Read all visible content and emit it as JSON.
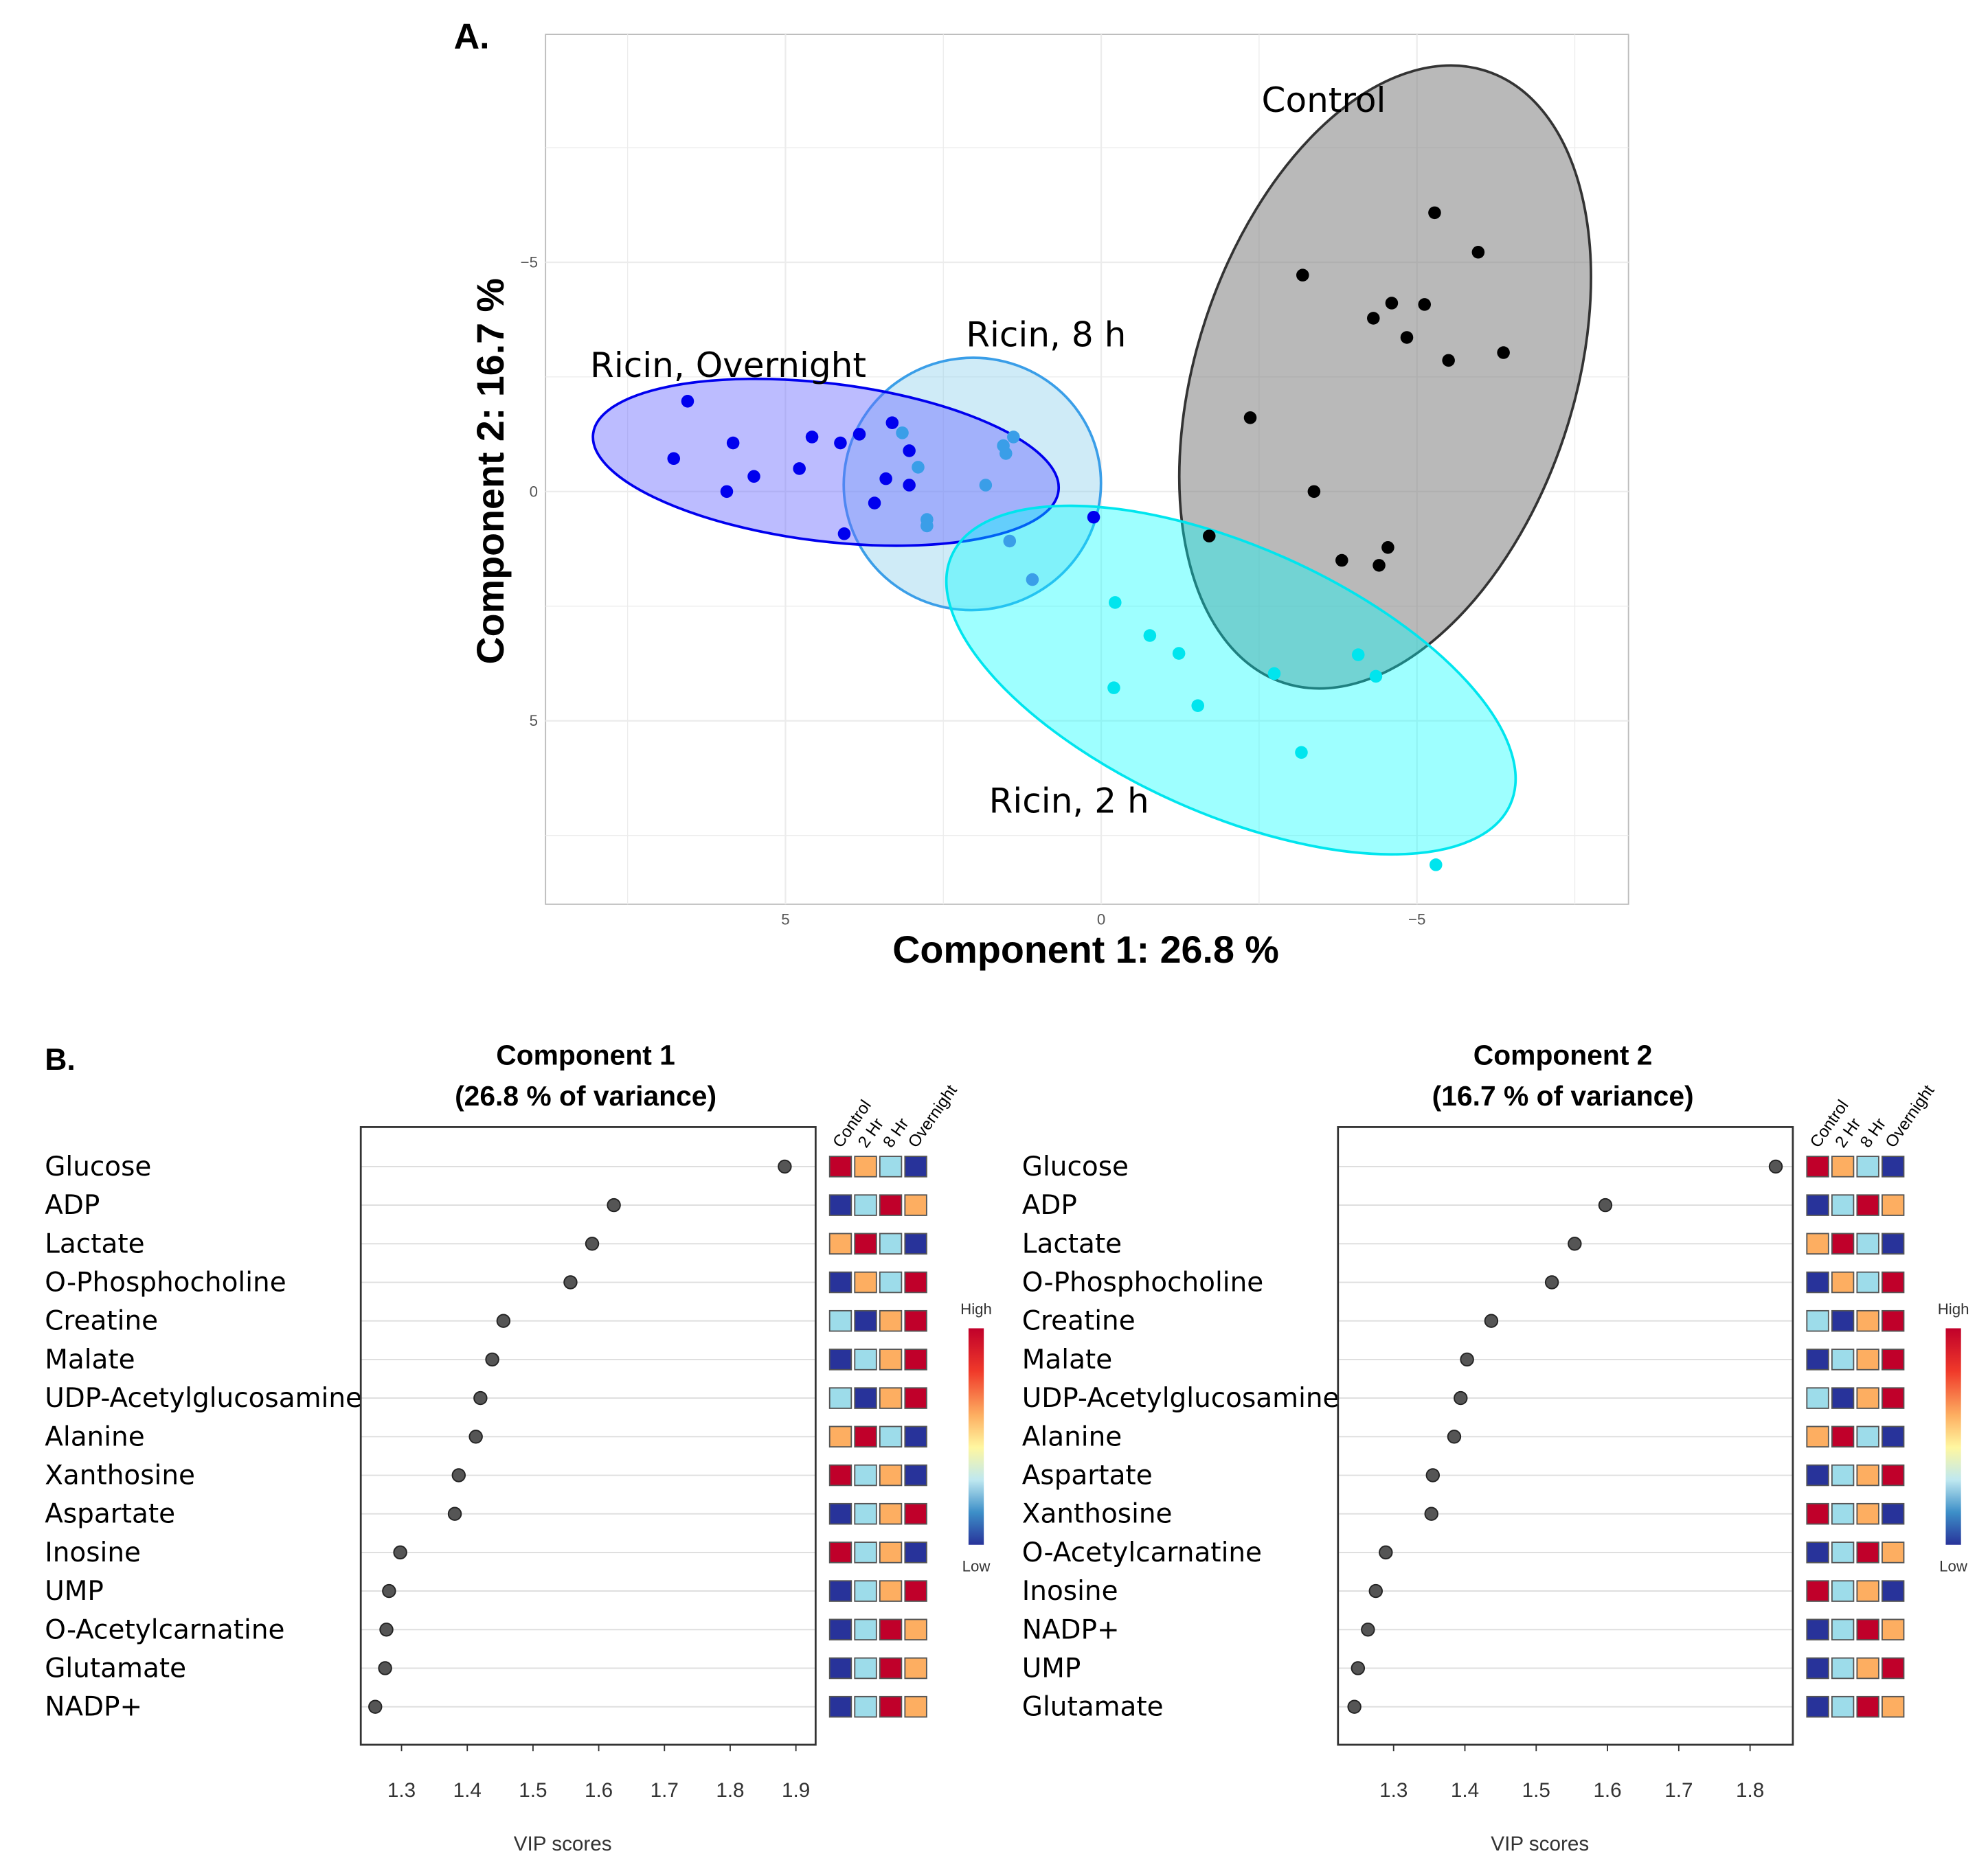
{
  "chart_data": [
    {
      "type": "scatter",
      "panel_label": "A.",
      "xlabel": "Component 1: 26.8 %",
      "ylabel": "Component 2: 16.7 %",
      "x_reversed": true,
      "y_reversed": true,
      "xlim": [
        8.8,
        -8.35
      ],
      "ylim": [
        -9.97,
        9.0
      ],
      "x_ticks": [
        "5",
        "0",
        "−5"
      ],
      "x_tick_values": [
        5,
        0,
        -5
      ],
      "y_ticks": [
        "−5",
        "0",
        "5"
      ],
      "y_tick_values": [
        -5,
        0,
        5
      ],
      "grid": true,
      "confidence_ellipses": true,
      "series": [
        {
          "name": "Control",
          "color": "#000000",
          "fill": "#808080",
          "points": [
            [
              -5.28,
              -6.08
            ],
            [
              -5.97,
              -5.22
            ],
            [
              -3.19,
              -4.72
            ],
            [
              -4.6,
              -4.11
            ],
            [
              -5.12,
              -4.08
            ],
            [
              -4.31,
              -3.78
            ],
            [
              -4.84,
              -3.36
            ],
            [
              -5.5,
              -2.86
            ],
            [
              -6.37,
              -3.03
            ],
            [
              -2.36,
              -1.61
            ],
            [
              -3.37,
              0
            ],
            [
              -1.71,
              0.97
            ],
            [
              -4.54,
              1.22
            ],
            [
              -3.81,
              1.5
            ],
            [
              -4.4,
              1.61
            ]
          ]
        },
        {
          "name": "Ricin, 8 h",
          "color": "#3a9ee8",
          "fill": "#87ceeb",
          "points": [
            [
              3.15,
              -1.28
            ],
            [
              2.9,
              -0.53
            ],
            [
              2.76,
              0.61
            ],
            [
              2.76,
              0.75
            ],
            [
              1.83,
              -0.14
            ],
            [
              1.55,
              -1.0
            ],
            [
              1.51,
              -0.83
            ],
            [
              1.39,
              -1.19
            ],
            [
              1.45,
              1.08
            ],
            [
              1.09,
              1.92
            ]
          ]
        },
        {
          "name": "Ricin, Overnight",
          "color": "#0000ee",
          "fill": "#6a6aff",
          "points": [
            [
              6.55,
              -1.97
            ],
            [
              6.77,
              -0.72
            ],
            [
              5.83,
              -1.06
            ],
            [
              5.5,
              -0.33
            ],
            [
              5.93,
              0
            ],
            [
              4.78,
              -0.5
            ],
            [
              4.58,
              -1.19
            ],
            [
              4.13,
              -1.06
            ],
            [
              3.83,
              -1.25
            ],
            [
              3.31,
              -1.5
            ],
            [
              3.04,
              -0.89
            ],
            [
              3.41,
              -0.28
            ],
            [
              3.04,
              -0.14
            ],
            [
              3.59,
              0.25
            ],
            [
              4.07,
              0.92
            ],
            [
              0.12,
              0.56
            ]
          ]
        },
        {
          "name": "Ricin, 2 h",
          "color": "#00e5ee",
          "fill": "#00ffff",
          "points": [
            [
              -0.22,
              2.42
            ],
            [
              -0.77,
              3.14
            ],
            [
              -1.23,
              3.53
            ],
            [
              -0.2,
              4.28
            ],
            [
              -1.53,
              4.67
            ],
            [
              -2.74,
              3.97
            ],
            [
              -4.07,
              3.56
            ],
            [
              -4.35,
              4.03
            ],
            [
              -3.17,
              5.69
            ],
            [
              -5.3,
              8.14
            ]
          ]
        }
      ]
    },
    {
      "type": "dot",
      "panel_label": "B.",
      "title": [
        "Component 1",
        "(26.8 % of variance)"
      ],
      "xlabel": "VIP scores",
      "xlim": [
        1.238,
        1.93
      ],
      "x_ticks": [
        "1.3",
        "1.4",
        "1.5",
        "1.6",
        "1.7",
        "1.8",
        "1.9"
      ],
      "categories": [
        "Glucose",
        "ADP",
        "Lactate",
        "O-Phosphocholine",
        "Creatine",
        "Malate",
        "UDP-Acetylglucosamine",
        "Alanine",
        "Xanthosine",
        "Aspartate",
        "Inosine",
        "UMP",
        "O-Acetylcarnatine",
        "Glutamate",
        "NADP+"
      ],
      "values": [
        1.883,
        1.623,
        1.59,
        1.557,
        1.455,
        1.438,
        1.42,
        1.413,
        1.387,
        1.381,
        1.298,
        1.281,
        1.277,
        1.275,
        1.26
      ],
      "heatmap_columns": [
        "Control",
        "2 Hr",
        "8 Hr",
        "Overnight"
      ],
      "heatmap": [
        [
          "high",
          "mid-high",
          "mid-low",
          "low"
        ],
        [
          "low",
          "mid-low",
          "high",
          "mid-high"
        ],
        [
          "mid-high",
          "high",
          "mid-low",
          "low"
        ],
        [
          "low",
          "mid-high",
          "mid-low",
          "high"
        ],
        [
          "mid-low",
          "low",
          "mid-high",
          "high"
        ],
        [
          "low",
          "mid-low",
          "mid-high",
          "high"
        ],
        [
          "mid-low",
          "low",
          "mid-high",
          "high"
        ],
        [
          "mid-high",
          "high",
          "mid-low",
          "low"
        ],
        [
          "high",
          "mid-low",
          "mid-high",
          "low"
        ],
        [
          "low",
          "mid-low",
          "mid-high",
          "high"
        ],
        [
          "high",
          "mid-low",
          "mid-high",
          "low"
        ],
        [
          "low",
          "mid-low",
          "mid-high",
          "high"
        ],
        [
          "low",
          "mid-low",
          "high",
          "mid-high"
        ],
        [
          "low",
          "mid-low",
          "high",
          "mid-high"
        ],
        [
          "low",
          "mid-low",
          "high",
          "mid-high"
        ]
      ],
      "colorbar": {
        "high_label": "High",
        "low_label": "Low"
      }
    },
    {
      "type": "dot",
      "title": [
        "Component 2",
        "(16.7 % of variance)"
      ],
      "xlabel": "VIP scores",
      "xlim": [
        1.222,
        1.86
      ],
      "x_ticks": [
        "1.3",
        "1.4",
        "1.5",
        "1.6",
        "1.7",
        "1.8"
      ],
      "categories": [
        "Glucose",
        "ADP",
        "Lactate",
        "O-Phosphocholine",
        "Creatine",
        "Malate",
        "UDP-Acetylglucosamine",
        "Alanine",
        "Aspartate",
        "Xanthosine",
        "O-Acetylcarnatine",
        "Inosine",
        "NADP+",
        "UMP",
        "Glutamate"
      ],
      "values": [
        1.836,
        1.597,
        1.554,
        1.522,
        1.437,
        1.403,
        1.394,
        1.385,
        1.355,
        1.353,
        1.289,
        1.275,
        1.264,
        1.25,
        1.245
      ],
      "heatmap_columns": [
        "Control",
        "2 Hr",
        "8 Hr",
        "Overnight"
      ],
      "heatmap": [
        [
          "high",
          "mid-high",
          "mid-low",
          "low"
        ],
        [
          "low",
          "mid-low",
          "high",
          "mid-high"
        ],
        [
          "mid-high",
          "high",
          "mid-low",
          "low"
        ],
        [
          "low",
          "mid-high",
          "mid-low",
          "high"
        ],
        [
          "mid-low",
          "low",
          "mid-high",
          "high"
        ],
        [
          "low",
          "mid-low",
          "mid-high",
          "high"
        ],
        [
          "mid-low",
          "low",
          "mid-high",
          "high"
        ],
        [
          "mid-high",
          "high",
          "mid-low",
          "low"
        ],
        [
          "low",
          "mid-low",
          "mid-high",
          "high"
        ],
        [
          "high",
          "mid-low",
          "mid-high",
          "low"
        ],
        [
          "low",
          "mid-low",
          "high",
          "mid-high"
        ],
        [
          "high",
          "mid-low",
          "mid-high",
          "low"
        ],
        [
          "low",
          "mid-low",
          "high",
          "mid-high"
        ],
        [
          "low",
          "mid-low",
          "mid-high",
          "high"
        ],
        [
          "low",
          "mid-low",
          "high",
          "mid-high"
        ]
      ],
      "colorbar": {
        "high_label": "High",
        "low_label": "Low"
      }
    }
  ],
  "heat_colors": {
    "high": "#c0002a",
    "mid-high": "#fdae61",
    "mid-low": "#9ddcea",
    "low": "#28339a"
  }
}
